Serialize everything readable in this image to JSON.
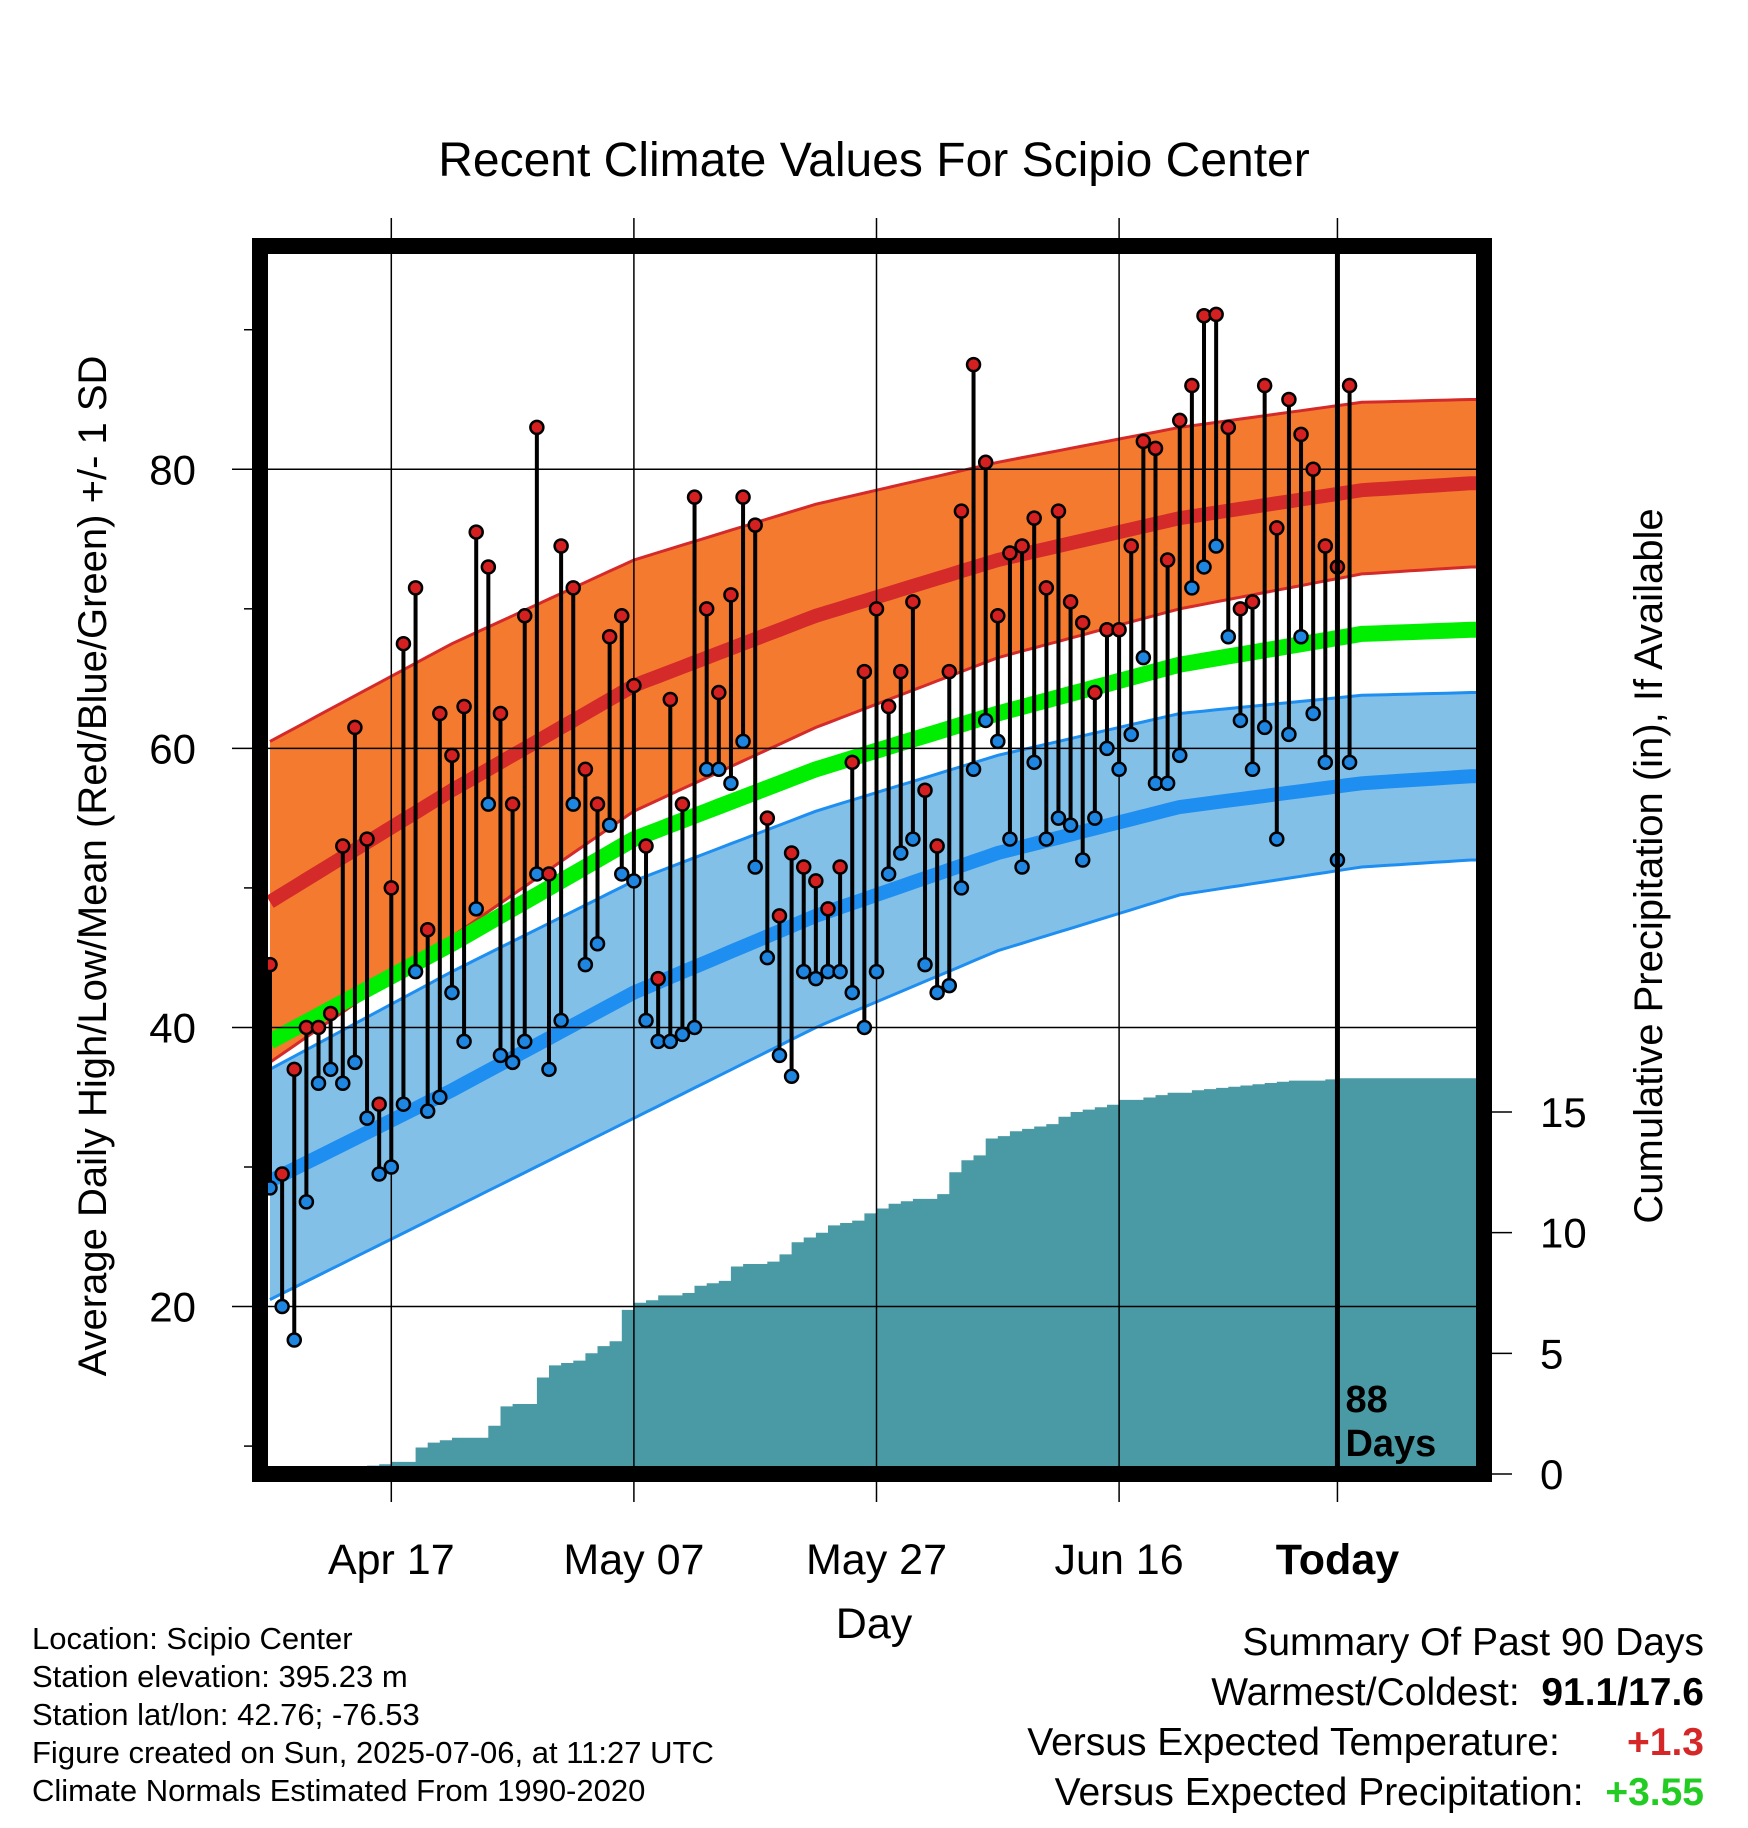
{
  "chart_data": {
    "type": "line",
    "title": "Recent Climate Values For Scipio Center",
    "xlabel": "Day",
    "ylabel": "Average Daily High/Low/Mean (Red/Blue/Green) +/- 1 SD",
    "y2label": "Cumulative Precipitation (in), If Available",
    "x_ticks": [
      "Apr 17",
      "May 07",
      "May 27",
      "Jun 16",
      "Today"
    ],
    "y_ticks": [
      20,
      40,
      60,
      80
    ],
    "y2_ticks": [
      0,
      5,
      10,
      15
    ],
    "ylim": [
      8,
      96
    ],
    "y2lim": [
      0,
      15
    ],
    "days_label": [
      "88",
      "Days"
    ],
    "colors": {
      "high_band": "#f47a30",
      "high_mean": "#d42a2a",
      "low_band": "#82c0e8",
      "low_mean": "#1e8ef0",
      "daily_mean": "#00ee00",
      "precip": "#4a9aa5",
      "high_dot": "#d42020",
      "low_dot": "#1e86e0"
    },
    "normal_days": [
      0,
      15,
      30,
      45,
      60,
      75,
      90,
      99
    ],
    "normal_high_mean": [
      49,
      57,
      64.5,
      69.5,
      73.5,
      76.5,
      78.5,
      79
    ],
    "normal_high_upper": [
      60.5,
      67.5,
      73.5,
      77.5,
      80.5,
      83,
      84.8,
      85
    ],
    "normal_high_lower": [
      37.5,
      46.5,
      55.5,
      61.5,
      66.5,
      70,
      72.5,
      73
    ],
    "normal_mean": [
      39,
      46,
      53.5,
      58.5,
      62.5,
      66,
      68.2,
      68.5
    ],
    "normal_low_mean": [
      29,
      35.5,
      42.5,
      48,
      52.5,
      55.8,
      57.5,
      58
    ],
    "normal_low_upper": [
      37,
      44,
      50.5,
      55.5,
      59.5,
      62.5,
      63.8,
      64
    ],
    "normal_low_lower": [
      20.5,
      27,
      33.5,
      40,
      45.5,
      49.5,
      51.5,
      52
    ],
    "series": [
      {
        "name": "High",
        "values": [
          44.5,
          29.5,
          37,
          40,
          40,
          41,
          53,
          61.5,
          53.5,
          34.5,
          50,
          67.5,
          71.5,
          47,
          62.5,
          59.5,
          63,
          75.5,
          73,
          62.5,
          56,
          69.5,
          83,
          51,
          74.5,
          71.5,
          58.5,
          56,
          68,
          69.5,
          64.5,
          53,
          43.5,
          63.5,
          56,
          78,
          70,
          64,
          71,
          78,
          76,
          55,
          48,
          52.5,
          51.5,
          50.5,
          48.5,
          51.5,
          59,
          65.5,
          70,
          63,
          65.5,
          70.5,
          57,
          53,
          65.5,
          77,
          87.5,
          80.5,
          69.5,
          74,
          74.5,
          76.5,
          71.5,
          77,
          70.5,
          69,
          64,
          68.5,
          68.5,
          74.5,
          82,
          81.5,
          73.5,
          83.5,
          86,
          91,
          91.1,
          83,
          70,
          70.5,
          86,
          75.8,
          85,
          82.5,
          80,
          74.5,
          73,
          86
        ]
      },
      {
        "name": "Low",
        "values": [
          28.5,
          20,
          17.6,
          27.5,
          36,
          37,
          36,
          37.5,
          33.5,
          29.5,
          30,
          34.5,
          44,
          34,
          35,
          42.5,
          39,
          48.5,
          56,
          38,
          37.5,
          39,
          51,
          37,
          40.5,
          56,
          44.5,
          46,
          54.5,
          51,
          50.5,
          40.5,
          39,
          39,
          39.5,
          40,
          58.5,
          58.5,
          57.5,
          60.5,
          51.5,
          45,
          38,
          36.5,
          44,
          43.5,
          44,
          44,
          42.5,
          40,
          44,
          51,
          52.5,
          53.5,
          44.5,
          42.5,
          43,
          50,
          58.5,
          62,
          60.5,
          53.5,
          51.5,
          59,
          53.5,
          55,
          54.5,
          52,
          55,
          60,
          58.5,
          61,
          66.5,
          57.5,
          57.5,
          59.5,
          71.5,
          73,
          74.5,
          68,
          62,
          58.5,
          61.5,
          53.5,
          61,
          68,
          62.5,
          59,
          52,
          59
        ]
      }
    ],
    "precip_cumulative": [
      0,
      0,
      0,
      0,
      0.1,
      0.2,
      0.3,
      0.3,
      0.35,
      0.4,
      0.5,
      0.5,
      1.1,
      1.3,
      1.4,
      1.5,
      1.5,
      1.5,
      2,
      2.8,
      2.9,
      2.9,
      4,
      4.5,
      4.6,
      4.7,
      5,
      5.3,
      5.5,
      6.8,
      7.1,
      7.2,
      7.4,
      7.4,
      7.5,
      7.8,
      7.9,
      8,
      8.6,
      8.7,
      8.7,
      8.8,
      9.1,
      9.6,
      9.8,
      10,
      10.3,
      10.4,
      10.5,
      10.8,
      11,
      11.2,
      11.3,
      11.4,
      11.4,
      11.6,
      12.5,
      13,
      13.2,
      13.9,
      14,
      14.2,
      14.3,
      14.4,
      14.5,
      14.8,
      15,
      15.1,
      15.2,
      15.3,
      15.5,
      15.5,
      15.6,
      15.7,
      15.8,
      15.8,
      15.9,
      15.95,
      16,
      16.05,
      16.1,
      16.15,
      16.2,
      16.25,
      16.3,
      16.3,
      16.3,
      16.35,
      16.4,
      16.4,
      16.4,
      16.4,
      16.4,
      16.4,
      16.4,
      16.4,
      16.4,
      16.4,
      16.4,
      16.4
    ]
  },
  "info": {
    "location": "Location: Scipio Center",
    "elevation": "Station elevation: 395.23 m",
    "latlon": "Station lat/lon: 42.76; -76.53",
    "created": "Figure created on Sun, 2025-07-06, at 11:27 UTC",
    "normals": "Climate Normals Estimated From 1990-2020"
  },
  "summary": {
    "heading": "Summary Of Past 90 Days",
    "warm_cold_label": "Warmest/Coldest:",
    "warm_cold_value": "91.1/17.6",
    "temp_label": "Versus Expected Temperature:",
    "temp_value": "+1.3",
    "precip_label": "Versus Expected Precipitation:",
    "precip_value": "+3.55"
  }
}
